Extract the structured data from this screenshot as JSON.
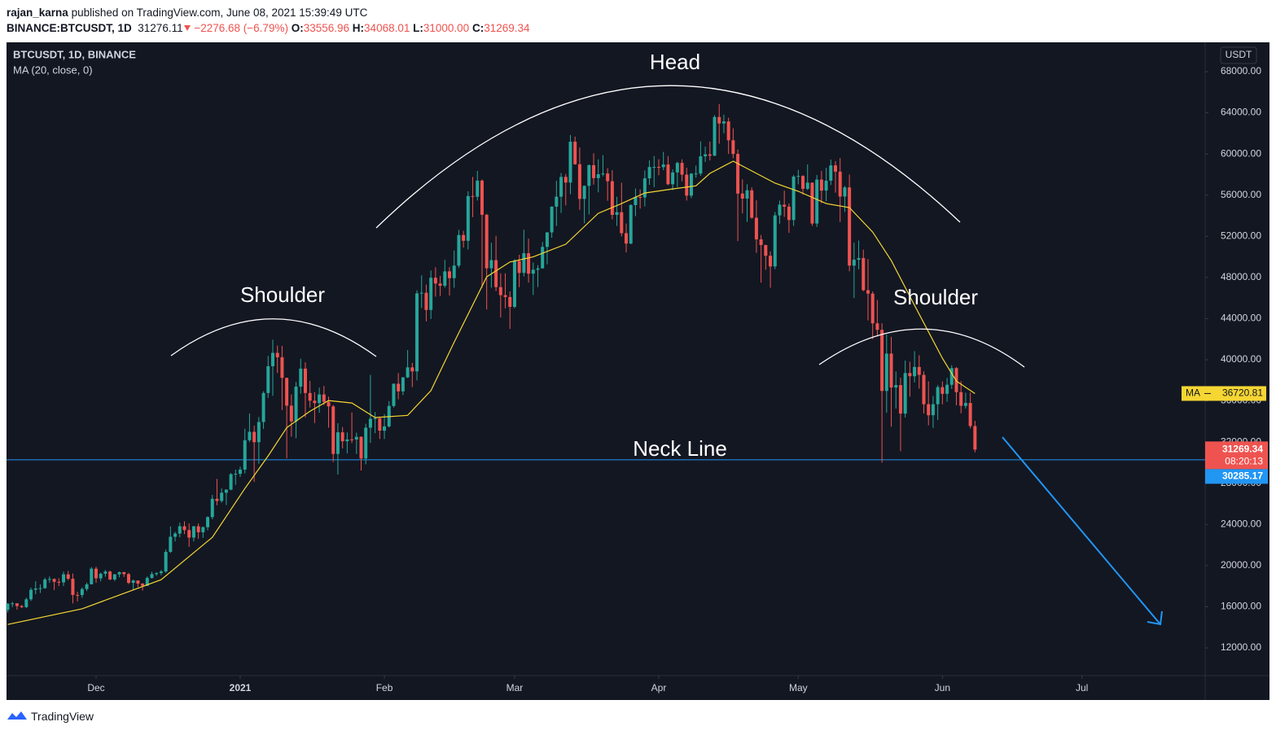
{
  "header": {
    "author": "rajan_karna",
    "published": "published on TradingView.com, June 08, 2021 15:39:49 UTC",
    "symbol": "BINANCE:BTCUSDT, 1D",
    "last": "31276.11",
    "change": "−2276.68 (−6.79%)",
    "open_label": "O:",
    "open": "33556.96",
    "high_label": "H:",
    "high": "34068.01",
    "low_label": "L:",
    "low": "31000.00",
    "close_label": "C:",
    "close": "31269.34"
  },
  "footer": {
    "brand": "TradingView"
  },
  "chart_data": {
    "type": "candlestick",
    "legend_title": "BTCUSDT, 1D, BINANCE",
    "currency": "USDT",
    "up_color": "#26a69a",
    "down_color": "#ef5350",
    "annotations": {
      "head": "Head",
      "left_shoulder": "Shoulder",
      "right_shoulder": "Shoulder",
      "neck": "Neck Line"
    },
    "xlim": [
      -0.26,
      257.5
    ],
    "xticks": [
      {
        "value": 19,
        "label": "Dec"
      },
      {
        "value": 50,
        "label": "2021"
      },
      {
        "value": 81,
        "label": "Feb"
      },
      {
        "value": 109,
        "label": "Mar"
      },
      {
        "value": 140,
        "label": "Apr"
      },
      {
        "value": 170,
        "label": "May"
      },
      {
        "value": 201,
        "label": "Jun"
      },
      {
        "value": 231,
        "label": "Jul"
      }
    ],
    "ylim": [
      9310,
      70610
    ],
    "yticks": [
      {
        "value": 12000,
        "label": "12000.00"
      },
      {
        "value": 16000,
        "label": "16000.00"
      },
      {
        "value": 20000,
        "label": "20000.00"
      },
      {
        "value": 24000,
        "label": "24000.00"
      },
      {
        "value": 28000,
        "label": "28000.00"
      },
      {
        "value": 32000,
        "label": "32000.00"
      },
      {
        "value": 36000,
        "label": "36000.00"
      },
      {
        "value": 40000,
        "label": "40000.00"
      },
      {
        "value": 44000,
        "label": "44000.00"
      },
      {
        "value": 48000,
        "label": "48000.00"
      },
      {
        "value": 52000,
        "label": "52000.00"
      },
      {
        "value": 56000,
        "label": "56000.00"
      },
      {
        "value": 60000,
        "label": "60000.00"
      },
      {
        "value": 64000,
        "label": "64000.00"
      },
      {
        "value": 68000,
        "label": "68000.00"
      }
    ],
    "grid": false,
    "neck_line": {
      "value": 30285.17,
      "color": "#2196f3"
    },
    "countdown": "08:20:13",
    "ma": {
      "name": "MA (20, close, 0)",
      "label": "MA",
      "color": "#f5d633",
      "x": [
        0,
        16,
        33,
        44,
        51,
        56,
        60,
        65,
        69,
        74,
        79,
        86,
        91,
        96,
        103,
        108,
        113,
        120,
        127,
        132,
        137,
        143,
        148,
        151,
        156,
        160,
        165,
        170,
        176,
        181,
        186,
        190,
        195,
        201,
        204,
        208
      ],
      "values": [
        14280,
        15800,
        18630,
        22750,
        27490,
        30660,
        33400,
        35000,
        36040,
        35800,
        34380,
        34600,
        37000,
        41700,
        48060,
        49500,
        50000,
        51230,
        54230,
        55180,
        56210,
        56600,
        56900,
        58110,
        59300,
        58350,
        57160,
        56370,
        55180,
        54790,
        52410,
        49640,
        45290,
        40150,
        37930,
        36720.81
      ]
    },
    "candles": [
      [
        15700,
        16350,
        15450,
        16300
      ],
      [
        16300,
        16480,
        15950,
        16330
      ],
      [
        16330,
        16340,
        15720,
        16070
      ],
      [
        16070,
        16170,
        15870,
        15960
      ],
      [
        15960,
        16880,
        15880,
        16720
      ],
      [
        16720,
        17860,
        16560,
        17650
      ],
      [
        17650,
        18480,
        17210,
        17770
      ],
      [
        17770,
        18180,
        17340,
        17800
      ],
      [
        17800,
        18820,
        17760,
        18650
      ],
      [
        18650,
        18950,
        18320,
        18700
      ],
      [
        18700,
        18750,
        17610,
        18420
      ],
      [
        18420,
        18770,
        18000,
        18370
      ],
      [
        18370,
        19420,
        18020,
        19150
      ],
      [
        19150,
        19480,
        18570,
        18720
      ],
      [
        18720,
        19230,
        16330,
        17150
      ],
      [
        17150,
        17450,
        16510,
        17140
      ],
      [
        17140,
        17880,
        16880,
        17720
      ],
      [
        17720,
        18340,
        17520,
        18180
      ],
      [
        18180,
        19860,
        18180,
        19700
      ],
      [
        19700,
        19890,
        18320,
        18760
      ],
      [
        18760,
        19310,
        18470,
        19210
      ],
      [
        19210,
        19570,
        18920,
        19420
      ],
      [
        19420,
        19510,
        18580,
        18650
      ],
      [
        18650,
        19180,
        18500,
        19150
      ],
      [
        19150,
        19420,
        18860,
        19360
      ],
      [
        19360,
        19390,
        18900,
        19170
      ],
      [
        19170,
        19290,
        18200,
        18320
      ],
      [
        18320,
        18640,
        17650,
        18550
      ],
      [
        18550,
        18560,
        17910,
        18250
      ],
      [
        18250,
        18290,
        17570,
        18030
      ],
      [
        18030,
        18950,
        18020,
        18800
      ],
      [
        18800,
        19410,
        18730,
        19170
      ],
      [
        19170,
        19350,
        19000,
        19270
      ],
      [
        19270,
        19570,
        19050,
        19430
      ],
      [
        19430,
        21560,
        19300,
        21330
      ],
      [
        21330,
        23800,
        21230,
        22800
      ],
      [
        22800,
        23280,
        22350,
        23110
      ],
      [
        23110,
        24170,
        22750,
        23820
      ],
      [
        23820,
        24300,
        23060,
        23450
      ],
      [
        23450,
        24100,
        21820,
        22720
      ],
      [
        22720,
        23840,
        22350,
        23820
      ],
      [
        23820,
        24100,
        22600,
        23240
      ],
      [
        23240,
        23800,
        22700,
        23730
      ],
      [
        23730,
        24790,
        23430,
        24710
      ],
      [
        24710,
        26870,
        24500,
        26490
      ],
      [
        26490,
        28420,
        25860,
        26280
      ],
      [
        26280,
        27500,
        26100,
        27080
      ],
      [
        27080,
        27410,
        25880,
        27380
      ],
      [
        27380,
        28990,
        27320,
        28880
      ],
      [
        28880,
        29320,
        27850,
        28920
      ],
      [
        28920,
        29600,
        28620,
        29330
      ],
      [
        29330,
        33300,
        28950,
        32180
      ],
      [
        32180,
        34780,
        32000,
        33000
      ],
      [
        33000,
        33600,
        28130,
        31990
      ],
      [
        31990,
        34440,
        29900,
        33950
      ],
      [
        33950,
        36940,
        33290,
        36770
      ],
      [
        36770,
        40370,
        36300,
        39370
      ],
      [
        39370,
        41950,
        36500,
        40670
      ],
      [
        40670,
        41380,
        38720,
        40240
      ],
      [
        40240,
        41350,
        35110,
        38240
      ],
      [
        38240,
        38260,
        30420,
        35540
      ],
      [
        35540,
        36630,
        32530,
        34010
      ],
      [
        34010,
        37850,
        32380,
        37390
      ],
      [
        37390,
        40100,
        36700,
        39140
      ],
      [
        39140,
        39750,
        34410,
        36770
      ],
      [
        36770,
        37950,
        35360,
        36020
      ],
      [
        36020,
        36850,
        33850,
        35790
      ],
      [
        35790,
        37300,
        34850,
        36630
      ],
      [
        36630,
        37450,
        35590,
        35910
      ],
      [
        35910,
        36420,
        33400,
        35470
      ],
      [
        35470,
        35600,
        30070,
        30850
      ],
      [
        30850,
        33830,
        28850,
        32950
      ],
      [
        32950,
        33460,
        31390,
        32080
      ],
      [
        32080,
        32940,
        30900,
        32260
      ],
      [
        32260,
        34880,
        31910,
        32250
      ],
      [
        32250,
        32920,
        30840,
        32510
      ],
      [
        32510,
        32560,
        29240,
        30410
      ],
      [
        30410,
        33780,
        29840,
        33400
      ],
      [
        33400,
        38530,
        31920,
        34270
      ],
      [
        34270,
        34930,
        32860,
        34320
      ],
      [
        34320,
        34340,
        32300,
        33110
      ],
      [
        33110,
        34720,
        32300,
        33520
      ],
      [
        33520,
        35980,
        33420,
        35510
      ],
      [
        35510,
        37700,
        35360,
        37670
      ],
      [
        37670,
        38710,
        36160,
        36930
      ],
      [
        36930,
        38310,
        36570,
        38290
      ],
      [
        38290,
        40950,
        38220,
        39260
      ],
      [
        39260,
        39700,
        37350,
        38870
      ],
      [
        38870,
        46750,
        37990,
        46450
      ],
      [
        46450,
        48200,
        45020,
        46510
      ],
      [
        46510,
        47310,
        43730,
        44840
      ],
      [
        44840,
        48680,
        43960,
        47970
      ],
      [
        47970,
        48990,
        46130,
        47410
      ],
      [
        47410,
        48150,
        46200,
        47190
      ],
      [
        47190,
        49710,
        47000,
        48590
      ],
      [
        48590,
        49000,
        46250,
        47930
      ],
      [
        47930,
        50620,
        47000,
        49150
      ],
      [
        49150,
        52620,
        48940,
        52120
      ],
      [
        52120,
        52530,
        50900,
        51560
      ],
      [
        51560,
        56370,
        50710,
        55910
      ],
      [
        55910,
        57770,
        53860,
        55840
      ],
      [
        55840,
        58350,
        55480,
        57410
      ],
      [
        57410,
        57530,
        47000,
        54090
      ],
      [
        54090,
        54180,
        44890,
        48890
      ],
      [
        48890,
        51370,
        47000,
        49680
      ],
      [
        49680,
        52040,
        46680,
        47060
      ],
      [
        47060,
        48400,
        44110,
        46280
      ],
      [
        46280,
        48400,
        45000,
        46100
      ],
      [
        46100,
        46640,
        43000,
        45140
      ],
      [
        45140,
        49790,
        45000,
        49590
      ],
      [
        49590,
        50200,
        47050,
        48440
      ],
      [
        48440,
        52640,
        48100,
        50350
      ],
      [
        50350,
        51770,
        47500,
        48370
      ],
      [
        48370,
        49450,
        46300,
        48750
      ],
      [
        48750,
        49200,
        47070,
        48880
      ],
      [
        48880,
        51450,
        48880,
        50970
      ],
      [
        50970,
        52400,
        49270,
        52380
      ],
      [
        52380,
        54900,
        51850,
        54880
      ],
      [
        54880,
        57390,
        53000,
        55850
      ],
      [
        55850,
        58150,
        54270,
        57770
      ],
      [
        57770,
        58060,
        55000,
        57220
      ],
      [
        57220,
        61840,
        56080,
        61190
      ],
      [
        61190,
        61680,
        58950,
        59000
      ],
      [
        59000,
        60630,
        54570,
        55630
      ],
      [
        55630,
        56940,
        53270,
        56900
      ],
      [
        56900,
        58980,
        54120,
        58910
      ],
      [
        58910,
        60070,
        57020,
        57650
      ],
      [
        57650,
        59470,
        56270,
        58030
      ],
      [
        58030,
        59880,
        57820,
        58100
      ],
      [
        58100,
        58620,
        55450,
        57350
      ],
      [
        57350,
        58430,
        53650,
        54080
      ],
      [
        54080,
        55840,
        53000,
        54340
      ],
      [
        54340,
        57200,
        52000,
        52300
      ],
      [
        52300,
        53240,
        50430,
        51290
      ],
      [
        51290,
        55120,
        51230,
        55030
      ],
      [
        55030,
        56640,
        53960,
        55820
      ],
      [
        55820,
        56560,
        54690,
        55780
      ],
      [
        55780,
        58400,
        54900,
        57630
      ],
      [
        57630,
        59370,
        57000,
        58730
      ],
      [
        58730,
        59800,
        56770,
        58740
      ],
      [
        58740,
        59490,
        57930,
        58720
      ],
      [
        58720,
        60200,
        58430,
        58970
      ],
      [
        58970,
        59790,
        56960,
        57060
      ],
      [
        57060,
        58500,
        56480,
        58200
      ],
      [
        58200,
        59250,
        56790,
        59130
      ],
      [
        59130,
        59480,
        57350,
        57990
      ],
      [
        57990,
        58660,
        55470,
        55950
      ],
      [
        55950,
        58150,
        55700,
        58080
      ],
      [
        58080,
        58870,
        57700,
        58100
      ],
      [
        58100,
        61220,
        57880,
        59770
      ],
      [
        59770,
        60700,
        59230,
        59960
      ],
      [
        59960,
        61200,
        59370,
        59830
      ],
      [
        59830,
        63770,
        59790,
        63590
      ],
      [
        63590,
        64850,
        61000,
        62960
      ],
      [
        62960,
        63820,
        62020,
        63160
      ],
      [
        63160,
        63520,
        60000,
        61330
      ],
      [
        61330,
        62500,
        59580,
        60000
      ],
      [
        60000,
        60430,
        51540,
        56150
      ],
      [
        56150,
        57530,
        54220,
        55660
      ],
      [
        55660,
        57050,
        53400,
        56470
      ],
      [
        56470,
        56760,
        53700,
        53800
      ],
      [
        53800,
        55500,
        50400,
        51700
      ],
      [
        51700,
        52130,
        47500,
        51150
      ],
      [
        51150,
        51170,
        48750,
        50110
      ],
      [
        50110,
        50530,
        47000,
        49070
      ],
      [
        49070,
        54360,
        48800,
        54030
      ],
      [
        54030,
        55460,
        53220,
        55070
      ],
      [
        55070,
        56430,
        53880,
        54880
      ],
      [
        54880,
        55200,
        52330,
        53580
      ],
      [
        53580,
        57960,
        53010,
        57800
      ],
      [
        57800,
        58450,
        57050,
        57860
      ],
      [
        57860,
        57940,
        56040,
        56610
      ],
      [
        56610,
        58980,
        56480,
        57210
      ],
      [
        57210,
        57240,
        53010,
        53240
      ],
      [
        53240,
        57950,
        52900,
        57510
      ],
      [
        57510,
        58360,
        55200,
        56440
      ],
      [
        56440,
        58650,
        55400,
        57400
      ],
      [
        57400,
        59460,
        56980,
        58890
      ],
      [
        58890,
        59300,
        56240,
        58280
      ],
      [
        58280,
        59600,
        53400,
        55860
      ],
      [
        55860,
        56900,
        54370,
        56750
      ],
      [
        56750,
        58000,
        48600,
        49150
      ],
      [
        49150,
        51370,
        46000,
        49720
      ],
      [
        49720,
        51580,
        48800,
        49880
      ],
      [
        49880,
        50700,
        46660,
        46760
      ],
      [
        46760,
        49790,
        43830,
        46430
      ],
      [
        46430,
        46640,
        42000,
        43540
      ],
      [
        43540,
        45800,
        42250,
        42910
      ],
      [
        42910,
        43550,
        30000,
        36970
      ],
      [
        36970,
        42450,
        34850,
        40600
      ],
      [
        40600,
        42230,
        33490,
        37300
      ],
      [
        37300,
        38860,
        35260,
        37540
      ],
      [
        37540,
        38260,
        31110,
        34770
      ],
      [
        34770,
        39920,
        34400,
        38710
      ],
      [
        38710,
        39800,
        36420,
        38400
      ],
      [
        38400,
        40840,
        37800,
        39300
      ],
      [
        39300,
        40440,
        37190,
        38530
      ],
      [
        38530,
        38880,
        34780,
        35680
      ],
      [
        35680,
        37900,
        33630,
        34610
      ],
      [
        34610,
        36480,
        33380,
        35680
      ],
      [
        35680,
        37530,
        34150,
        37340
      ],
      [
        37340,
        37900,
        35670,
        36690
      ],
      [
        36690,
        38230,
        35920,
        37570
      ],
      [
        37570,
        39480,
        37170,
        39190
      ],
      [
        39190,
        39290,
        35570,
        36850
      ],
      [
        36850,
        37920,
        34800,
        35520
      ],
      [
        35520,
        36790,
        35260,
        35800
      ],
      [
        35800,
        36810,
        33340,
        33560
      ],
      [
        33556.96,
        34068.01,
        31000,
        31269.34
      ]
    ]
  }
}
